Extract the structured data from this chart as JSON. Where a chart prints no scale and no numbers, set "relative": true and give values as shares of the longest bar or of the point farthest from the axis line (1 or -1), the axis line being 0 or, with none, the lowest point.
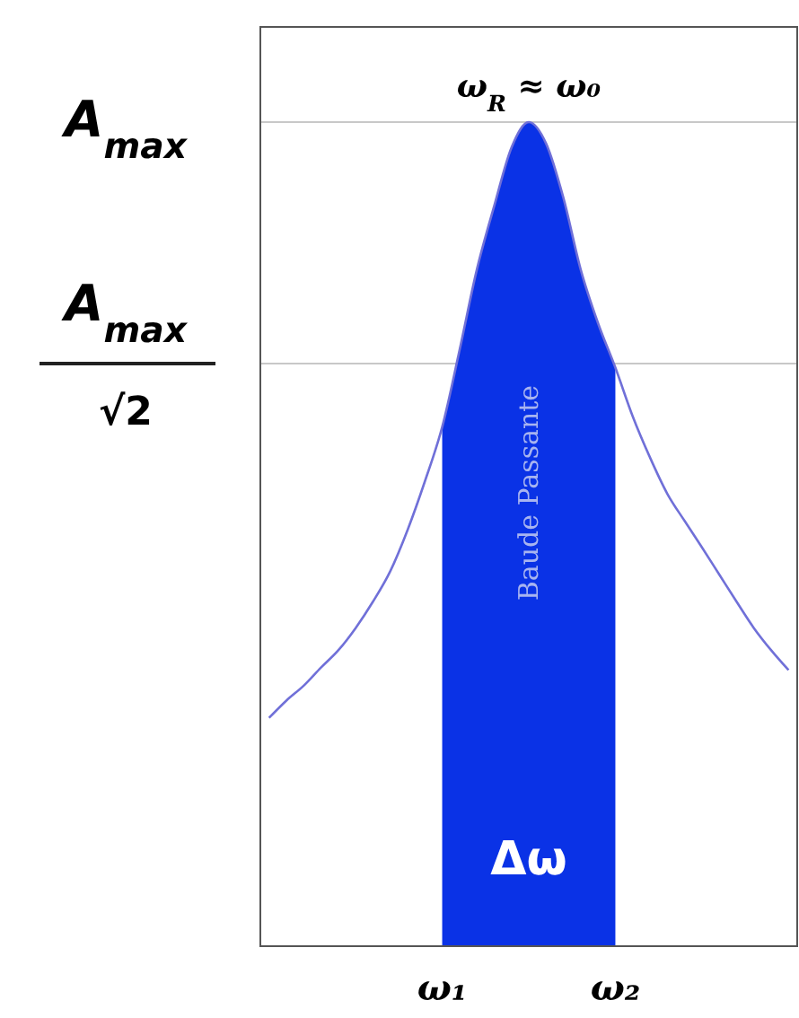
{
  "chart_data": {
    "type": "line",
    "relative": true,
    "annotations": [
      "ω$_{R}$ ≈ ω₀",
      "Baude Passante",
      "Δω",
      "A$_{max}$",
      "A$_{max}$",
      "√2"
    ],
    "categories": [
      null,
      null,
      null,
      null,
      null,
      null,
      null,
      null,
      null,
      null,
      "ω₁",
      null,
      null,
      null,
      null,
      null,
      null,
      null,
      null,
      null,
      "ω₂",
      null,
      null,
      null,
      null,
      null,
      null,
      null,
      null,
      null,
      null
    ],
    "ref_lines": [
      {
        "axis": "y",
        "value": 1,
        "color": "#c8c8c8"
      },
      {
        "axis": "y",
        "value": 0.7071,
        "color": "#c8c8c8"
      }
    ],
    "series": [
      {
        "type": "area",
        "color": "#0a32e6",
        "values": [
          null,
          null,
          null,
          null,
          null,
          null,
          null,
          null,
          null,
          null,
          0.63,
          0.723,
          0.821,
          0.898,
          0.969,
          1.0,
          0.974,
          0.908,
          0.821,
          0.756,
          0.702,
          null,
          null,
          null,
          null,
          null,
          null,
          null,
          null,
          null,
          null
        ]
      },
      {
        "color": "#7070d8",
        "values": [
          0.277,
          0.298,
          0.316,
          0.338,
          0.359,
          0.386,
          0.418,
          0.455,
          0.505,
          0.564,
          0.63,
          0.723,
          0.821,
          0.898,
          0.969,
          1.0,
          0.974,
          0.908,
          0.821,
          0.756,
          0.702,
          0.643,
          0.593,
          0.549,
          0.516,
          0.484,
          0.451,
          0.418,
          0.386,
          0.359,
          0.335
        ]
      }
    ]
  }
}
